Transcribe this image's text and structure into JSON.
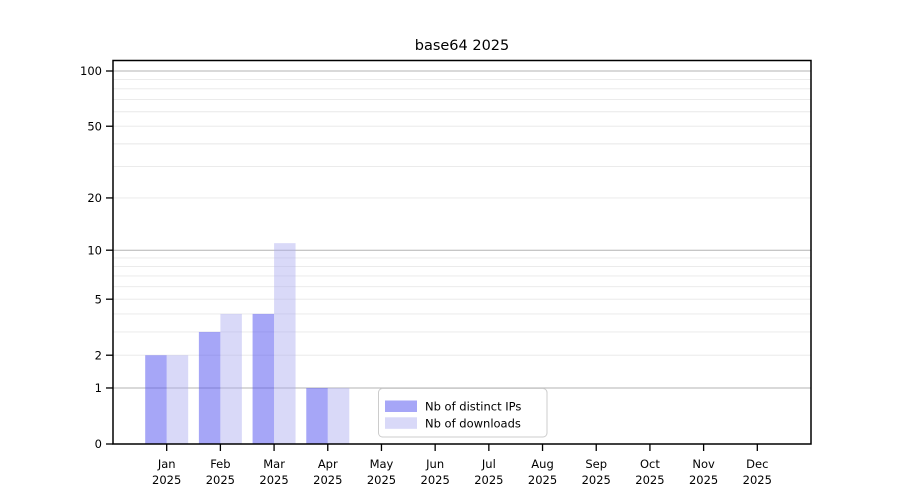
{
  "chart_data": {
    "type": "bar",
    "title": "base64 2025",
    "xlabel": "",
    "ylabel": "",
    "x_tick_labels": [
      [
        "Jan",
        "2025"
      ],
      [
        "Feb",
        "2025"
      ],
      [
        "Mar",
        "2025"
      ],
      [
        "Apr",
        "2025"
      ],
      [
        "May",
        "2025"
      ],
      [
        "Jun",
        "2025"
      ],
      [
        "Jul",
        "2025"
      ],
      [
        "Aug",
        "2025"
      ],
      [
        "Sep",
        "2025"
      ],
      [
        "Oct",
        "2025"
      ],
      [
        "Nov",
        "2025"
      ],
      [
        "Dec",
        "2025"
      ]
    ],
    "series": [
      {
        "name": "Nb of distinct IPs",
        "color": "rgba(85, 85, 240, 0.52)",
        "values": [
          2,
          3,
          4,
          1,
          0,
          0,
          0,
          0,
          0,
          0,
          0,
          0
        ]
      },
      {
        "name": "Nb of downloads",
        "color": "rgba(170, 170, 240, 0.45)",
        "values": [
          2,
          4,
          11,
          1,
          0,
          0,
          0,
          0,
          0,
          0,
          0,
          0
        ]
      }
    ],
    "y_axis": {
      "scale": "log1p",
      "ticks": [
        0,
        1,
        2,
        5,
        10,
        20,
        50,
        100
      ],
      "major_gridlines": [
        1,
        10,
        100
      ],
      "minor_gridlines": [
        2,
        3,
        4,
        5,
        6,
        7,
        8,
        9,
        20,
        30,
        40,
        50,
        60,
        70,
        80,
        90
      ],
      "ylim": [
        0,
        112
      ]
    },
    "grid": true,
    "legend_position": "lower center inside"
  },
  "colors": {
    "axis_border": "#000000",
    "major_grid": "#b3b3b3",
    "minor_grid": "#e8e8e8",
    "legend_border": "#cccccc",
    "legend_background": "rgba(255,255,255,0.85)",
    "text": "#000000"
  }
}
